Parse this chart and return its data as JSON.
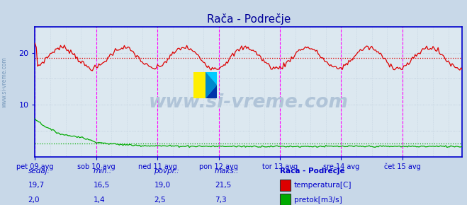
{
  "title": "Rača - Podrečje",
  "plot_bg_color": "#dce8f0",
  "fig_bg_color": "#dce8f0",
  "outer_bg_color": "#c8d8e8",
  "x_labels": [
    "pet 09 avg",
    "sob 10 avg",
    "ned 11 avg",
    "pon 12 avg",
    "tor 13 avg",
    "sre 14 avg",
    "čet 15 avg"
  ],
  "x_ticks_pos": [
    0,
    48,
    96,
    144,
    192,
    240,
    288
  ],
  "total_points": 336,
  "ylim": [
    0,
    25
  ],
  "y_ticks": [
    10,
    20
  ],
  "grid_color": "#b8c8d8",
  "temp_color": "#dd0000",
  "flow_color": "#00aa00",
  "temp_avg": 19.0,
  "flow_avg": 2.5,
  "temp_now": 19.7,
  "temp_min": 16.5,
  "temp_max": 21.5,
  "flow_now": 2.0,
  "flow_min": 1.4,
  "flow_max": 7.3,
  "vline_color": "#ff00ff",
  "axis_color": "#0000cc",
  "text_color": "#0000cc",
  "watermark_text": "www.si-vreme.com",
  "watermark_color": "#b0c4d8",
  "title_color": "#000099",
  "label_header": "Rača - Podrečje",
  "col1_label": "sedaj:",
  "col2_label": "min.:",
  "col3_label": "povpr.:",
  "col4_label": "maks.:",
  "legend1": "temperatura[C]",
  "legend2": "pretok[m3/s]"
}
